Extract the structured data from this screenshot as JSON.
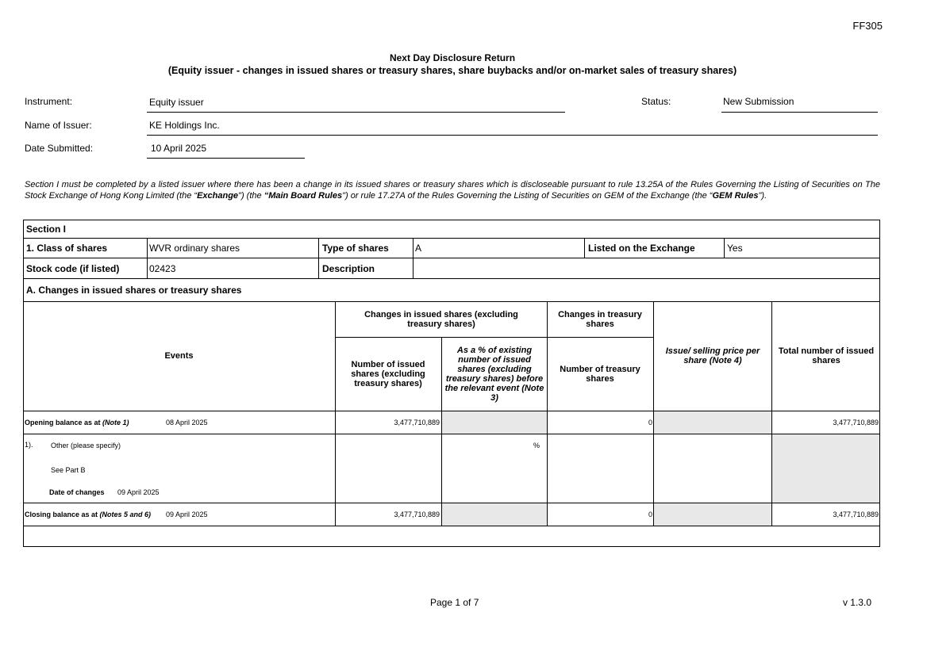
{
  "form_code": "FF305",
  "title": "Next Day Disclosure Return",
  "subtitle": "(Equity issuer - changes in issued shares or treasury shares, share buybacks and/or on-market sales of treasury shares)",
  "header": {
    "instrument_label": "Instrument:",
    "instrument_value": "Equity issuer",
    "status_label": "Status:",
    "status_value": "New Submission",
    "issuer_label": "Name of Issuer:",
    "issuer_value": "KE Holdings Inc.",
    "date_label": "Date Submitted:",
    "date_value": "10 April 2025"
  },
  "intro": {
    "p1": "Section I must be completed by a listed issuer where there has been a change in its issued shares or treasury shares which is discloseable pursuant to rule 13.25A of the Rules Governing the Listing of Securities on The Stock Exchange of Hong Kong Limited (the “",
    "exchange": "Exchange",
    "p2": "\") (the ",
    "mbr": "“Main Board Rules",
    "p3": "\") or rule 17.27A of the Rules Governing the Listing of Securities on GEM of the Exchange (the “",
    "gem": "GEM Rules",
    "p4": "\")."
  },
  "section": {
    "title": "Section I",
    "class_label": "1. Class of shares",
    "class_value": "WVR ordinary shares",
    "type_label": "Type of shares",
    "type_value": "A",
    "listed_label": "Listed on the Exchange",
    "listed_value": "Yes",
    "stock_label": "Stock code (if listed)",
    "stock_value": "02423",
    "desc_label": "Description",
    "desc_value": "",
    "a_title": "A. Changes in issued shares or treasury shares"
  },
  "table": {
    "events": "Events",
    "issued_group": "Changes in issued shares (excluding treasury shares)",
    "treasury_group": "Changes in treasury shares",
    "num_issued": "Number of issued shares (excluding treasury shares)",
    "pct": "As a % of existing number of issued shares (excluding treasury shares) before the relevant event (Note 3)",
    "num_treasury": "Number of treasury shares",
    "price": "Issue/ selling price per share (Note 4)",
    "total": "Total number of issued shares",
    "opening": {
      "label": "Opening balance as at ",
      "note": "(Note 1)",
      "date": "08 April 2025",
      "issued": "3,477,710,889",
      "treasury": "0",
      "total": "3,477,710,889"
    },
    "event1": {
      "num": "1).",
      "type": "Other (please specify)",
      "detail": "See Part B",
      "date_label": "Date of changes",
      "date": "09 April 2025",
      "pct": "%"
    },
    "closing": {
      "label": "Closing balance as at ",
      "note": "(Notes 5 and 6)",
      "date": "09 April 2025",
      "issued": "3,477,710,889",
      "treasury": "0",
      "total": "3,477,710,889"
    }
  },
  "footer": {
    "page": "Page 1 of 7",
    "version": "v 1.3.0"
  }
}
